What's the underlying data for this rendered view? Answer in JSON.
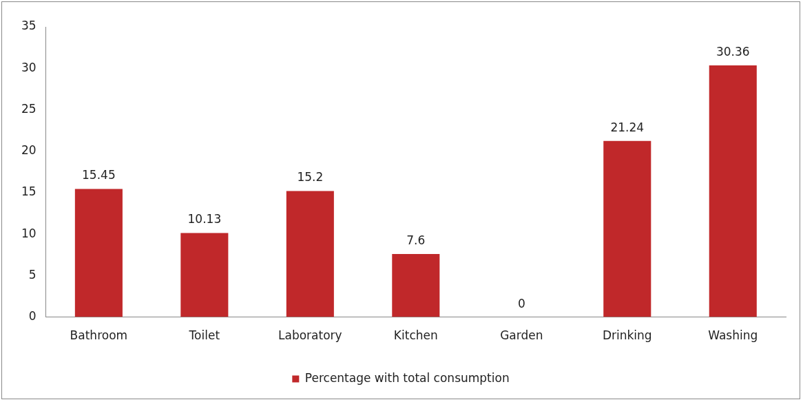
{
  "chart_data": {
    "type": "bar",
    "categories": [
      "Bathroom",
      "Toilet",
      "Laboratory",
      "Kitchen",
      "Garden",
      "Drinking",
      "Washing"
    ],
    "series": [
      {
        "name": "Percentage with total consumption",
        "color": "#c0282a",
        "values": [
          15.45,
          10.13,
          15.2,
          7.6,
          0,
          21.24,
          30.36
        ]
      }
    ],
    "ylim": [
      0,
      35
    ],
    "yticks": [
      0,
      5,
      10,
      15,
      20,
      25,
      30,
      35
    ],
    "grid": false,
    "legend": "bottom",
    "data_labels": true
  }
}
